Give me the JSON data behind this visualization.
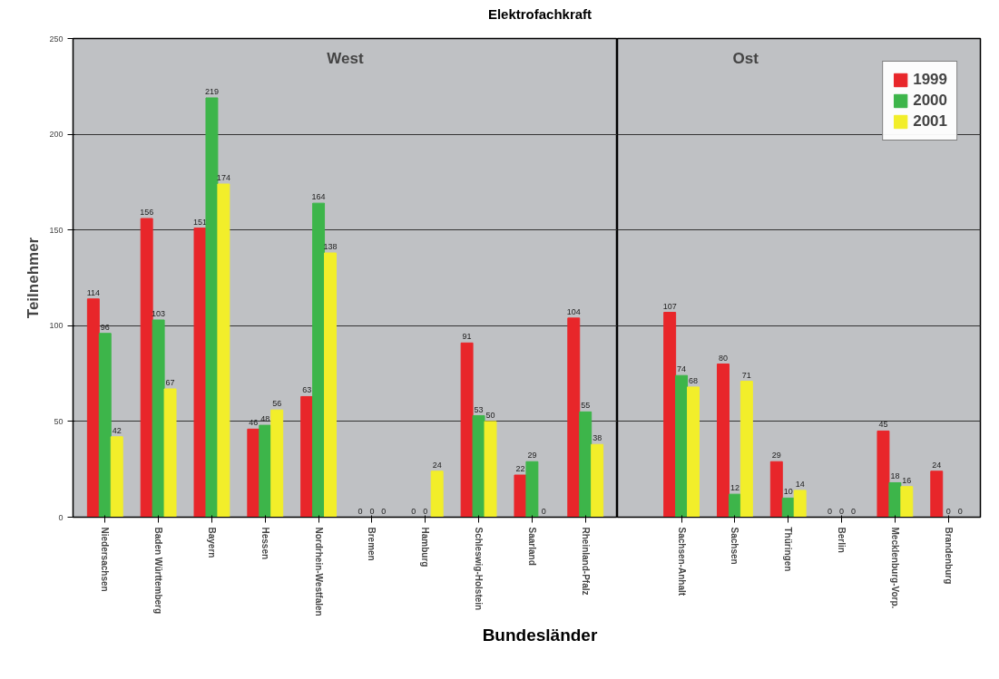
{
  "chart_data": [
    {
      "type": "bar",
      "title": "Elektrofachkraft",
      "xlabel": "Bundesländer",
      "ylabel": "Teilnehmer",
      "categories": [
        "Niedersachsen",
        "Baden Württemberg",
        "Bayern",
        "Hessen",
        "Nordrhein-Westfalen",
        "Bremen",
        "Hamburg",
        "Schleswig-Holstein",
        "Saarland",
        "Rheinland-Pfalz"
      ],
      "series": [
        {
          "color": "#e8262a",
          "values": [
            114,
            156,
            151,
            46,
            63,
            0,
            0,
            91,
            22,
            104
          ]
        },
        {
          "color": "#3db54a",
          "values": [
            96,
            103,
            219,
            48,
            164,
            0,
            0,
            53,
            29,
            55
          ]
        },
        {
          "color": "#f2ee2a",
          "values": [
            42,
            67,
            174,
            56,
            138,
            0,
            24,
            50,
            0,
            38
          ]
        }
      ],
      "ylim": [
        0,
        250
      ],
      "yticks": [
        0,
        50,
        100,
        150,
        200,
        250
      ],
      "grid": "y",
      "data_labels": true,
      "annotations": [
        "West"
      ]
    },
    {
      "type": "bar",
      "categories": [
        "Sachsen-Anhalt",
        "Sachsen",
        "Thüringen",
        "Berlin",
        "Mecklenburg-Vorp.",
        "Brandenburg"
      ],
      "series": [
        {
          "name": "1999",
          "color": "#e8262a",
          "values": [
            107,
            80,
            29,
            0,
            45,
            24
          ]
        },
        {
          "name": "2000",
          "color": "#3db54a",
          "values": [
            74,
            12,
            10,
            0,
            18,
            0
          ]
        },
        {
          "name": "2001",
          "color": "#f2ee2a",
          "values": [
            68,
            71,
            14,
            0,
            16,
            0
          ]
        }
      ],
      "ylim": [
        0,
        250
      ],
      "yticks": [
        0,
        50,
        100,
        150,
        200,
        250
      ],
      "grid": "y",
      "legend": "top right",
      "data_labels": true,
      "tick_labels": "x",
      "annotations": [
        "Ost"
      ]
    }
  ]
}
